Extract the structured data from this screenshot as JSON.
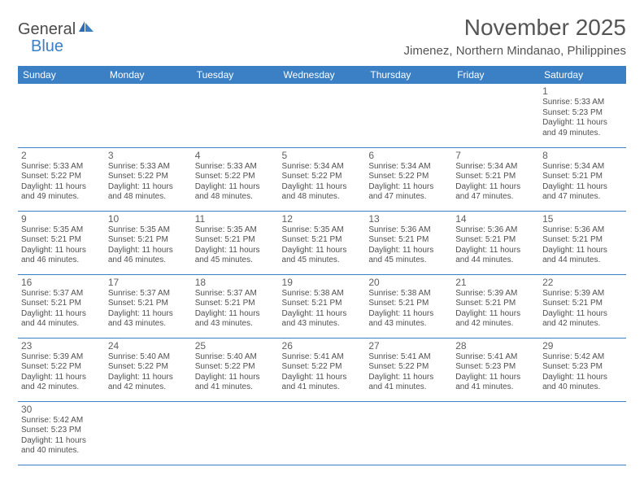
{
  "logo": {
    "part1": "General",
    "part2": "Blue"
  },
  "title": "November 2025",
  "location": "Jimenez, Northern Mindanao, Philippines",
  "colors": {
    "header_bg": "#3b7fc4",
    "header_text": "#ffffff",
    "border": "#3b7fc4",
    "text": "#505050",
    "title_text": "#555555"
  },
  "weekdays": [
    "Sunday",
    "Monday",
    "Tuesday",
    "Wednesday",
    "Thursday",
    "Friday",
    "Saturday"
  ],
  "days": [
    {
      "n": "1",
      "sr": "5:33 AM",
      "ss": "5:23 PM",
      "dl": "11 hours and 49 minutes."
    },
    {
      "n": "2",
      "sr": "5:33 AM",
      "ss": "5:22 PM",
      "dl": "11 hours and 49 minutes."
    },
    {
      "n": "3",
      "sr": "5:33 AM",
      "ss": "5:22 PM",
      "dl": "11 hours and 48 minutes."
    },
    {
      "n": "4",
      "sr": "5:33 AM",
      "ss": "5:22 PM",
      "dl": "11 hours and 48 minutes."
    },
    {
      "n": "5",
      "sr": "5:34 AM",
      "ss": "5:22 PM",
      "dl": "11 hours and 48 minutes."
    },
    {
      "n": "6",
      "sr": "5:34 AM",
      "ss": "5:22 PM",
      "dl": "11 hours and 47 minutes."
    },
    {
      "n": "7",
      "sr": "5:34 AM",
      "ss": "5:21 PM",
      "dl": "11 hours and 47 minutes."
    },
    {
      "n": "8",
      "sr": "5:34 AM",
      "ss": "5:21 PM",
      "dl": "11 hours and 47 minutes."
    },
    {
      "n": "9",
      "sr": "5:35 AM",
      "ss": "5:21 PM",
      "dl": "11 hours and 46 minutes."
    },
    {
      "n": "10",
      "sr": "5:35 AM",
      "ss": "5:21 PM",
      "dl": "11 hours and 46 minutes."
    },
    {
      "n": "11",
      "sr": "5:35 AM",
      "ss": "5:21 PM",
      "dl": "11 hours and 45 minutes."
    },
    {
      "n": "12",
      "sr": "5:35 AM",
      "ss": "5:21 PM",
      "dl": "11 hours and 45 minutes."
    },
    {
      "n": "13",
      "sr": "5:36 AM",
      "ss": "5:21 PM",
      "dl": "11 hours and 45 minutes."
    },
    {
      "n": "14",
      "sr": "5:36 AM",
      "ss": "5:21 PM",
      "dl": "11 hours and 44 minutes."
    },
    {
      "n": "15",
      "sr": "5:36 AM",
      "ss": "5:21 PM",
      "dl": "11 hours and 44 minutes."
    },
    {
      "n": "16",
      "sr": "5:37 AM",
      "ss": "5:21 PM",
      "dl": "11 hours and 44 minutes."
    },
    {
      "n": "17",
      "sr": "5:37 AM",
      "ss": "5:21 PM",
      "dl": "11 hours and 43 minutes."
    },
    {
      "n": "18",
      "sr": "5:37 AM",
      "ss": "5:21 PM",
      "dl": "11 hours and 43 minutes."
    },
    {
      "n": "19",
      "sr": "5:38 AM",
      "ss": "5:21 PM",
      "dl": "11 hours and 43 minutes."
    },
    {
      "n": "20",
      "sr": "5:38 AM",
      "ss": "5:21 PM",
      "dl": "11 hours and 43 minutes."
    },
    {
      "n": "21",
      "sr": "5:39 AM",
      "ss": "5:21 PM",
      "dl": "11 hours and 42 minutes."
    },
    {
      "n": "22",
      "sr": "5:39 AM",
      "ss": "5:21 PM",
      "dl": "11 hours and 42 minutes."
    },
    {
      "n": "23",
      "sr": "5:39 AM",
      "ss": "5:22 PM",
      "dl": "11 hours and 42 minutes."
    },
    {
      "n": "24",
      "sr": "5:40 AM",
      "ss": "5:22 PM",
      "dl": "11 hours and 42 minutes."
    },
    {
      "n": "25",
      "sr": "5:40 AM",
      "ss": "5:22 PM",
      "dl": "11 hours and 41 minutes."
    },
    {
      "n": "26",
      "sr": "5:41 AM",
      "ss": "5:22 PM",
      "dl": "11 hours and 41 minutes."
    },
    {
      "n": "27",
      "sr": "5:41 AM",
      "ss": "5:22 PM",
      "dl": "11 hours and 41 minutes."
    },
    {
      "n": "28",
      "sr": "5:41 AM",
      "ss": "5:23 PM",
      "dl": "11 hours and 41 minutes."
    },
    {
      "n": "29",
      "sr": "5:42 AM",
      "ss": "5:23 PM",
      "dl": "11 hours and 40 minutes."
    },
    {
      "n": "30",
      "sr": "5:42 AM",
      "ss": "5:23 PM",
      "dl": "11 hours and 40 minutes."
    }
  ],
  "labels": {
    "sunrise": "Sunrise:",
    "sunset": "Sunset:",
    "daylight": "Daylight:"
  },
  "layout": {
    "first_weekday_index": 6,
    "rows": 6
  }
}
